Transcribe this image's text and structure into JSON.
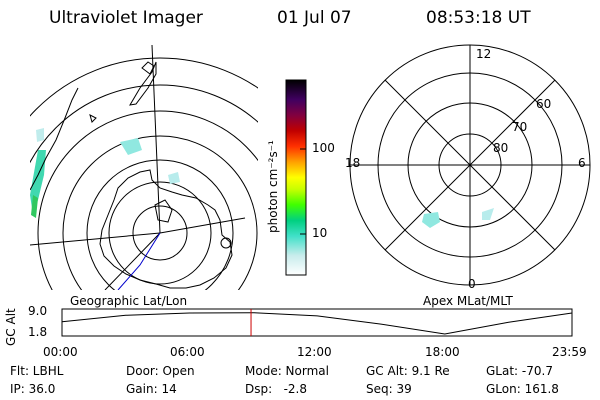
{
  "header": {
    "instrument": "Ultraviolet Imager",
    "date": "01 Jul 07",
    "time": "08:53:18 UT"
  },
  "colorbar": {
    "unit_label": "photon cm⁻²s⁻¹",
    "ticks": [
      "100",
      "10"
    ],
    "colors": [
      "#ffffff",
      "#c8ecec",
      "#40e0c8",
      "#00d080",
      "#40ff00",
      "#c8ff00",
      "#ffff00",
      "#ffa000",
      "#ff3000",
      "#c00000",
      "#800040",
      "#400060",
      "#000000"
    ]
  },
  "left_map": {
    "label": "Geographic Lat/Lon"
  },
  "right_polar": {
    "label": "Apex MLat/MLT",
    "mlt_labels": {
      "top": "12",
      "right": "6",
      "bottom": "0",
      "left": "18"
    },
    "lat_labels": [
      "60",
      "70",
      "80"
    ]
  },
  "altitude_plot": {
    "axis_title": "GC Alt",
    "y_ticks": [
      "9.0",
      "1.8"
    ],
    "x_ticks": [
      "00:00",
      "06:00",
      "12:00",
      "18:00",
      "23:59"
    ],
    "marker_color": "#cc0000",
    "curve": {
      "t": [
        0,
        3,
        6,
        9,
        12,
        15,
        18,
        21,
        23.98
      ],
      "alt": [
        6.0,
        8.2,
        9.0,
        9.1,
        8.0,
        5.2,
        1.8,
        5.8,
        9.0
      ]
    },
    "marker_time": 8.888
  },
  "info": {
    "flt": "Flt: LBHL",
    "ip": "IP: 36.0",
    "door": "Door: Open",
    "gain": "Gain: 14",
    "mode": "Mode: Normal",
    "dsp": "Dsp:   -2.8",
    "gcalt": "GC Alt: 9.1 Re",
    "seq": "Seq: 39",
    "glat": "GLat: -70.7",
    "glon": "GLon: 161.8"
  }
}
